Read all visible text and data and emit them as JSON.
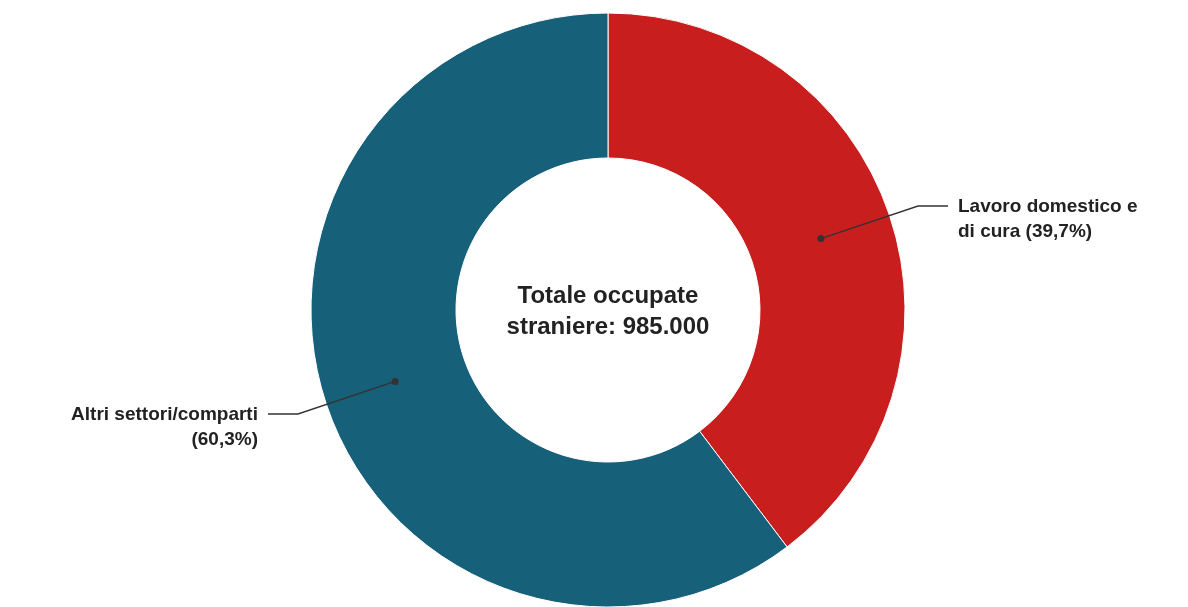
{
  "chart_data": {
    "type": "donut",
    "title": "Totale occupate straniere: 985.000",
    "categories": [
      "Lavoro domestico e di cura",
      "Altri settori/comparti"
    ],
    "values": [
      39.7,
      60.3
    ],
    "colors": [
      "#c81e1e",
      "#17607a"
    ],
    "value_labels": [
      "(39,7%)",
      "(60,3%)"
    ]
  }
}
